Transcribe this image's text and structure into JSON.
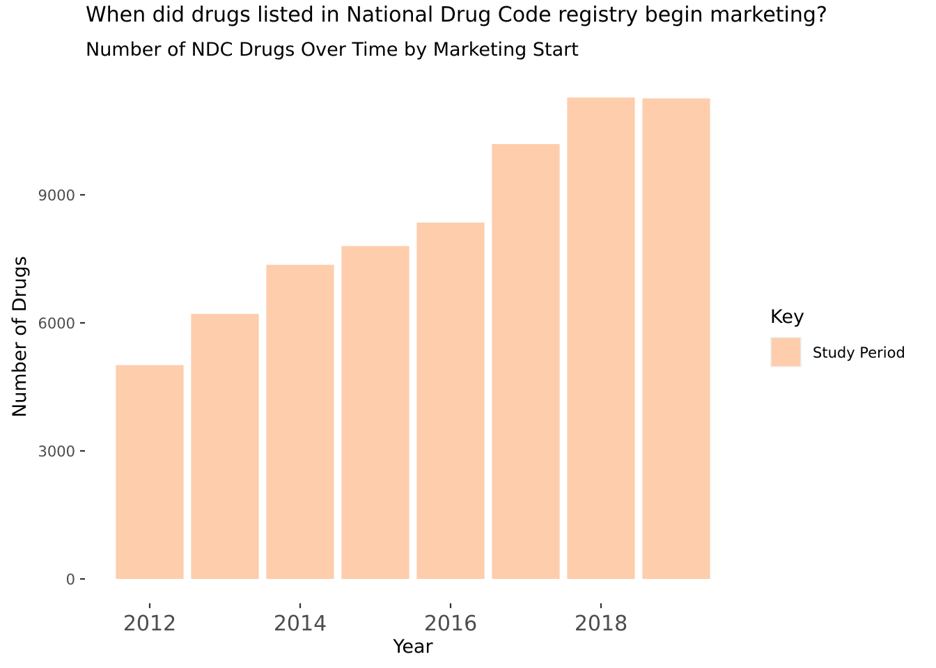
{
  "chart_data": {
    "type": "bar",
    "title": "When did drugs listed in National Drug Code registry begin marketing?",
    "subtitle": "Number of NDC Drugs Over Time by Marketing Start",
    "xlabel": "Year",
    "ylabel": "Number of Drugs",
    "x": [
      2012,
      2013,
      2014,
      2015,
      2016,
      2017,
      2018,
      2019
    ],
    "x_ticks": [
      "2012",
      "2014",
      "2016",
      "2018"
    ],
    "y_ticks": [
      "0",
      "3000",
      "6000",
      "9000"
    ],
    "ylim": [
      0,
      11800
    ],
    "series": [
      {
        "name": "Study Period",
        "values": [
          5010,
          6210,
          7360,
          7800,
          8350,
          10190,
          11280,
          11260
        ],
        "color": "#fdcdac"
      }
    ],
    "grid": false,
    "legend": {
      "title": "Key",
      "position": "right"
    }
  }
}
